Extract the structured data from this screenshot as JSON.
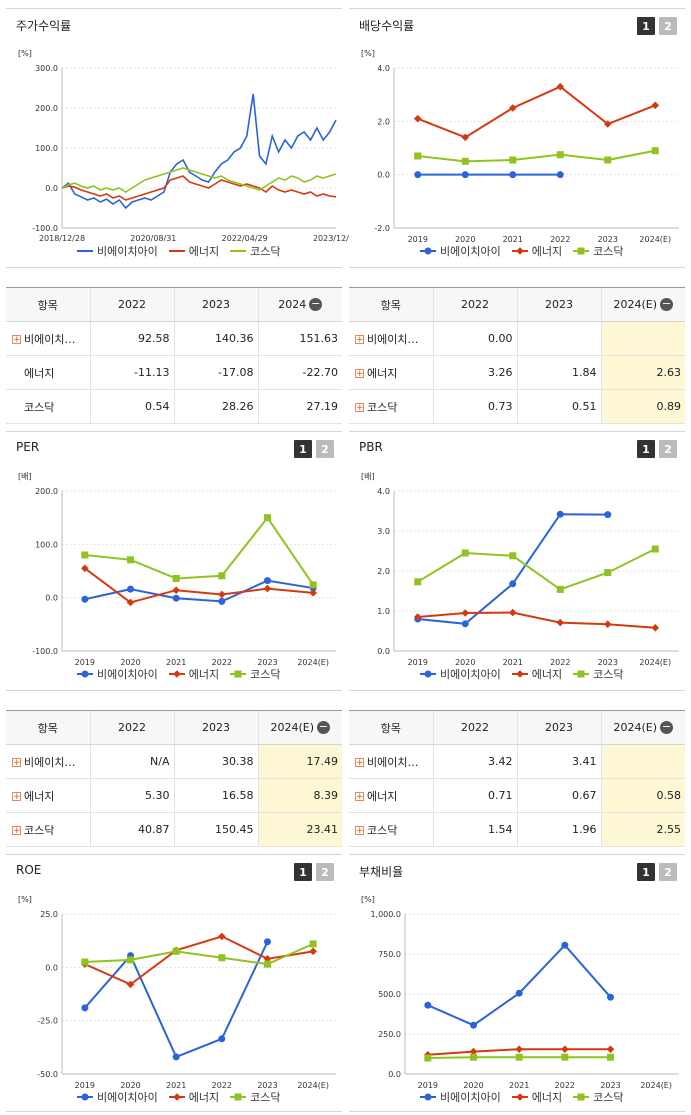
{
  "legend": [
    "비에이치아이",
    "에너지",
    "코스닥"
  ],
  "colors": {
    "bhi": "#2b63d9",
    "energy": "#d43a12",
    "kosdaq": "#8fc31f",
    "highlight": "#fef7d4"
  },
  "buttons": {
    "one": "1",
    "two": "2"
  },
  "tables": {
    "returns": {
      "headers": [
        "항목",
        "2022",
        "2023",
        "2024"
      ],
      "rows": [
        {
          "name": "비에이치…",
          "plus": true,
          "values": [
            "92.58",
            "140.36",
            "151.63"
          ]
        },
        {
          "name": "에너지",
          "plus": false,
          "values": [
            "-11.13",
            "-17.08",
            "-22.70"
          ]
        },
        {
          "name": "코스닥",
          "plus": false,
          "values": [
            "0.54",
            "28.26",
            "27.19"
          ]
        }
      ]
    },
    "dividend": {
      "headers": [
        "항목",
        "2022",
        "2023",
        "2024(E)"
      ],
      "rows": [
        {
          "name": "비에이치…",
          "plus": true,
          "values": [
            "0.00",
            "",
            ""
          ]
        },
        {
          "name": "에너지",
          "plus": true,
          "values": [
            "3.26",
            "1.84",
            "2.63"
          ]
        },
        {
          "name": "코스닥",
          "plus": true,
          "values": [
            "0.73",
            "0.51",
            "0.89"
          ]
        }
      ]
    },
    "per": {
      "headers": [
        "항목",
        "2022",
        "2023",
        "2024(E)"
      ],
      "rows": [
        {
          "name": "비에이치…",
          "plus": true,
          "values": [
            "N/A",
            "30.38",
            "17.49"
          ]
        },
        {
          "name": "에너지",
          "plus": true,
          "values": [
            "5.30",
            "16.58",
            "8.39"
          ]
        },
        {
          "name": "코스닥",
          "plus": true,
          "values": [
            "40.87",
            "150.45",
            "23.41"
          ]
        }
      ]
    },
    "pbr": {
      "headers": [
        "항목",
        "2022",
        "2023",
        "2024(E)"
      ],
      "rows": [
        {
          "name": "비에이치…",
          "plus": true,
          "values": [
            "3.42",
            "3.41",
            ""
          ]
        },
        {
          "name": "에너지",
          "plus": true,
          "values": [
            "0.71",
            "0.67",
            "0.58"
          ]
        },
        {
          "name": "코스닥",
          "plus": true,
          "values": [
            "1.54",
            "1.96",
            "2.55"
          ]
        }
      ]
    }
  },
  "chart_data": [
    {
      "id": "stock",
      "type": "line",
      "title": "주가수익률",
      "unit": "[%]",
      "ylim": [
        -100,
        300
      ],
      "yticks": [
        "300.0",
        "200.0",
        "100.0",
        "0.0",
        "-100.0"
      ],
      "xticks": [
        "2018/12/28",
        "2020/08/31",
        "2022/04/29",
        "2023/12/28"
      ],
      "series": [
        {
          "name": "비에이치아이",
          "values": [
            0,
            12,
            -15,
            -22,
            -30,
            -25,
            -35,
            -28,
            -40,
            -30,
            -50,
            -35,
            -30,
            -25,
            -30,
            -20,
            -10,
            40,
            60,
            70,
            40,
            30,
            20,
            15,
            40,
            60,
            70,
            90,
            100,
            130,
            235,
            80,
            60,
            130,
            90,
            120,
            100,
            130,
            140,
            120,
            150,
            120,
            140,
            170
          ]
        },
        {
          "name": "에너지",
          "values": [
            0,
            5,
            2,
            -5,
            -10,
            -15,
            -20,
            -15,
            -25,
            -20,
            -30,
            -25,
            -20,
            -15,
            -10,
            -5,
            0,
            20,
            25,
            30,
            15,
            10,
            5,
            0,
            10,
            20,
            15,
            10,
            5,
            10,
            5,
            0,
            -10,
            5,
            -5,
            -10,
            -5,
            -10,
            -15,
            -10,
            -20,
            -15,
            -20,
            -22
          ]
        },
        {
          "name": "코스닥",
          "values": [
            0,
            8,
            12,
            5,
            0,
            5,
            -5,
            0,
            -5,
            0,
            -10,
            0,
            10,
            20,
            25,
            30,
            35,
            40,
            45,
            50,
            45,
            40,
            35,
            30,
            25,
            30,
            20,
            15,
            10,
            5,
            0,
            -5,
            5,
            15,
            25,
            20,
            30,
            25,
            15,
            20,
            30,
            25,
            30,
            35
          ]
        }
      ]
    },
    {
      "id": "dividend",
      "type": "line",
      "title": "배당수익률",
      "unit": "[%]",
      "ylim": [
        -2,
        4
      ],
      "yticks": [
        "4.0",
        "2.0",
        "0.0",
        "-2.0"
      ],
      "categories": [
        "2019",
        "2020",
        "2021",
        "2022",
        "2023",
        "2024(E)"
      ],
      "series": [
        {
          "name": "비에이치아이",
          "values": [
            0.0,
            0.0,
            0.0,
            0.0,
            null,
            null
          ]
        },
        {
          "name": "에너지",
          "values": [
            2.1,
            1.4,
            2.5,
            3.3,
            1.9,
            2.6
          ]
        },
        {
          "name": "코스닥",
          "values": [
            0.7,
            0.5,
            0.55,
            0.75,
            0.55,
            0.9
          ]
        }
      ]
    },
    {
      "id": "per",
      "type": "line",
      "title": "PER",
      "unit": "[배]",
      "ylim": [
        -100,
        200
      ],
      "yticks": [
        "200.0",
        "100.0",
        "0.0",
        "-100.0"
      ],
      "categories": [
        "2019",
        "2020",
        "2021",
        "2022",
        "2023",
        "2024(E)"
      ],
      "series": [
        {
          "name": "비에이치아이",
          "values": [
            -3,
            16,
            -1,
            -7,
            32,
            18
          ]
        },
        {
          "name": "에너지",
          "values": [
            55,
            -9,
            14,
            6,
            17,
            9
          ]
        },
        {
          "name": "코스닥",
          "values": [
            80,
            71,
            36,
            41,
            150,
            24
          ]
        }
      ]
    },
    {
      "id": "pbr",
      "type": "line",
      "title": "PBR",
      "unit": "[배]",
      "ylim": [
        0,
        4
      ],
      "yticks": [
        "4.0",
        "3.0",
        "2.0",
        "1.0",
        "0.0"
      ],
      "categories": [
        "2019",
        "2020",
        "2021",
        "2022",
        "2023",
        "2024(E)"
      ],
      "series": [
        {
          "name": "비에이치아이",
          "values": [
            0.8,
            0.68,
            1.68,
            3.42,
            3.41,
            null
          ]
        },
        {
          "name": "에너지",
          "values": [
            0.85,
            0.95,
            0.96,
            0.71,
            0.67,
            0.58
          ]
        },
        {
          "name": "코스닥",
          "values": [
            1.73,
            2.45,
            2.38,
            1.54,
            1.96,
            2.55
          ]
        }
      ]
    },
    {
      "id": "roe",
      "type": "line",
      "title": "ROE",
      "unit": "[%]",
      "ylim": [
        -50,
        25
      ],
      "yticks": [
        "25.0",
        "0.0",
        "-25.0",
        "-50.0"
      ],
      "categories": [
        "2019",
        "2020",
        "2021",
        "2022",
        "2023",
        "2024(E)"
      ],
      "series": [
        {
          "name": "비에이치아이",
          "values": [
            -19,
            5.5,
            -42,
            -33.5,
            12,
            null
          ]
        },
        {
          "name": "에너지",
          "values": [
            1.5,
            -8,
            8,
            14.5,
            4,
            7.5
          ]
        },
        {
          "name": "코스닥",
          "values": [
            2.5,
            3.5,
            7.5,
            4.5,
            1.5,
            11
          ]
        }
      ]
    },
    {
      "id": "debt",
      "type": "line",
      "title": "부채비율",
      "unit": "[%]",
      "ylim": [
        0,
        1000
      ],
      "yticks": [
        "1,000.0",
        "750.0",
        "500.0",
        "250.0",
        "0.0"
      ],
      "categories": [
        "2019",
        "2020",
        "2021",
        "2022",
        "2023",
        "2024(E)"
      ],
      "series": [
        {
          "name": "비에이치아이",
          "values": [
            430,
            305,
            505,
            805,
            480,
            null
          ]
        },
        {
          "name": "에너지",
          "values": [
            120,
            140,
            155,
            155,
            155,
            null
          ]
        },
        {
          "name": "코스닥",
          "values": [
            100,
            105,
            105,
            105,
            105,
            null
          ]
        }
      ]
    }
  ]
}
